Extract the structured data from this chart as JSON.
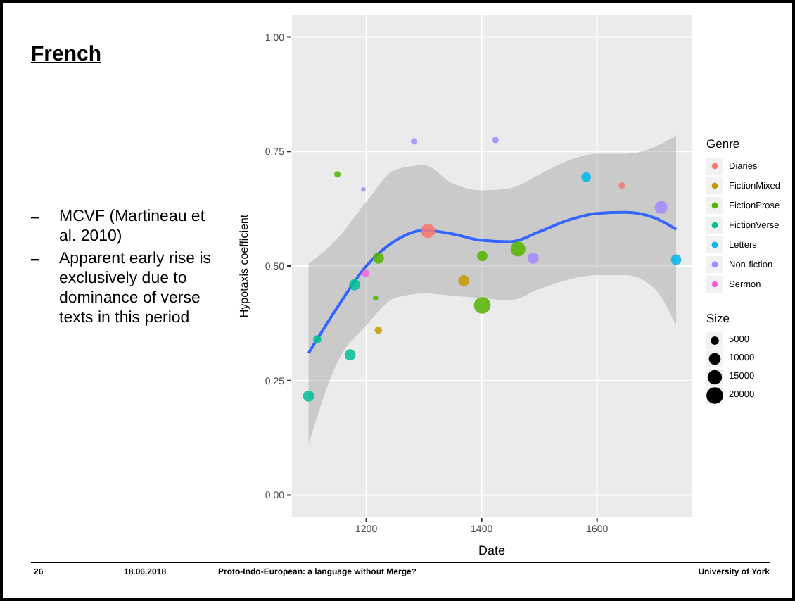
{
  "chart_data": {
    "type": "bubble",
    "title": "French",
    "xlabel": "Date",
    "ylabel": "Hypotaxis coefficient",
    "legend_title": "Genre",
    "annotations": [
      "MCVF (Martineau et al. 2010)",
      "Apparent early rise is exclusively due to dominance of verse texts in this period",
      "26",
      "18.06.2018",
      "Proto-Indo-European: a language without Merge?",
      "University of York",
      "Size"
    ],
    "xlim": [
      1070,
      1765
    ],
    "xticks": [
      1200,
      1400,
      1600
    ],
    "ylim": [
      -0.05,
      1.05
    ],
    "yticks": [
      {
        "value": 0,
        "label": "0.00"
      },
      {
        "value": 0.25,
        "label": "0.25"
      },
      {
        "value": 0.5,
        "label": "0.50"
      },
      {
        "value": 0.75,
        "label": "0.75"
      },
      {
        "value": 1,
        "label": "1.00"
      }
    ],
    "grid": true,
    "legend": "right",
    "marker": "circle",
    "size_legend": [
      5000,
      10000,
      15000,
      20000
    ],
    "series": [
      {
        "name": "Diaries",
        "color": "#f8766d",
        "x": [
          1307,
          1643
        ],
        "values": [
          0.577,
          0.676
        ],
        "sizes": [
          15000,
          3000
        ]
      },
      {
        "name": "FictionMixed",
        "color": "#c49a00",
        "x": [
          1369,
          1221
        ],
        "values": [
          0.468,
          0.36
        ],
        "sizes": [
          9000,
          4000
        ]
      },
      {
        "name": "FictionProse",
        "color": "#53b400",
        "x": [
          1150,
          1221,
          1216,
          1401,
          1401,
          1463
        ],
        "values": [
          0.7,
          0.517,
          0.43,
          0.414,
          0.522,
          0.537
        ],
        "sizes": [
          3000,
          9000,
          2000,
          20000,
          8000,
          16000
        ]
      },
      {
        "name": "FictionVerse",
        "color": "#00c094",
        "x": [
          1100,
          1172,
          1180,
          1115
        ],
        "values": [
          0.216,
          0.306,
          0.459,
          0.34
        ],
        "sizes": [
          9000,
          9000,
          9000,
          5000
        ]
      },
      {
        "name": "Letters",
        "color": "#00b6eb",
        "x": [
          1581,
          1737
        ],
        "values": [
          0.694,
          0.514
        ],
        "sizes": [
          7000,
          8000
        ]
      },
      {
        "name": "Non-fiction",
        "color": "#a58aff",
        "x": [
          1283,
          1424,
          1195,
          1489,
          1711
        ],
        "values": [
          0.772,
          0.775,
          0.667,
          0.517,
          0.628
        ],
        "sizes": [
          3000,
          3000,
          1500,
          9000,
          12000
        ]
      },
      {
        "name": "Sermon",
        "color": "#fb61d7",
        "x": [
          1199
        ],
        "values": [
          0.484
        ],
        "sizes": [
          4000
        ]
      },
      {
        "type": "line",
        "marker": "none",
        "color": "#3366ff",
        "x": [
          1100,
          1150,
          1200,
          1250,
          1300,
          1350,
          1400,
          1450,
          1500,
          1550,
          1600,
          1650,
          1700,
          1737
        ],
        "values": [
          0.31,
          0.41,
          0.5,
          0.555,
          0.578,
          0.57,
          0.556,
          0.553,
          0.575,
          0.6,
          0.615,
          0.617,
          0.605,
          0.58
        ],
        "lower": [
          0.11,
          0.29,
          0.37,
          0.43,
          0.44,
          0.435,
          0.43,
          0.425,
          0.45,
          0.47,
          0.48,
          0.48,
          0.45,
          0.37
        ],
        "upper": [
          0.505,
          0.56,
          0.64,
          0.71,
          0.72,
          0.68,
          0.665,
          0.67,
          0.7,
          0.73,
          0.745,
          0.745,
          0.76,
          0.785
        ]
      }
    ]
  }
}
